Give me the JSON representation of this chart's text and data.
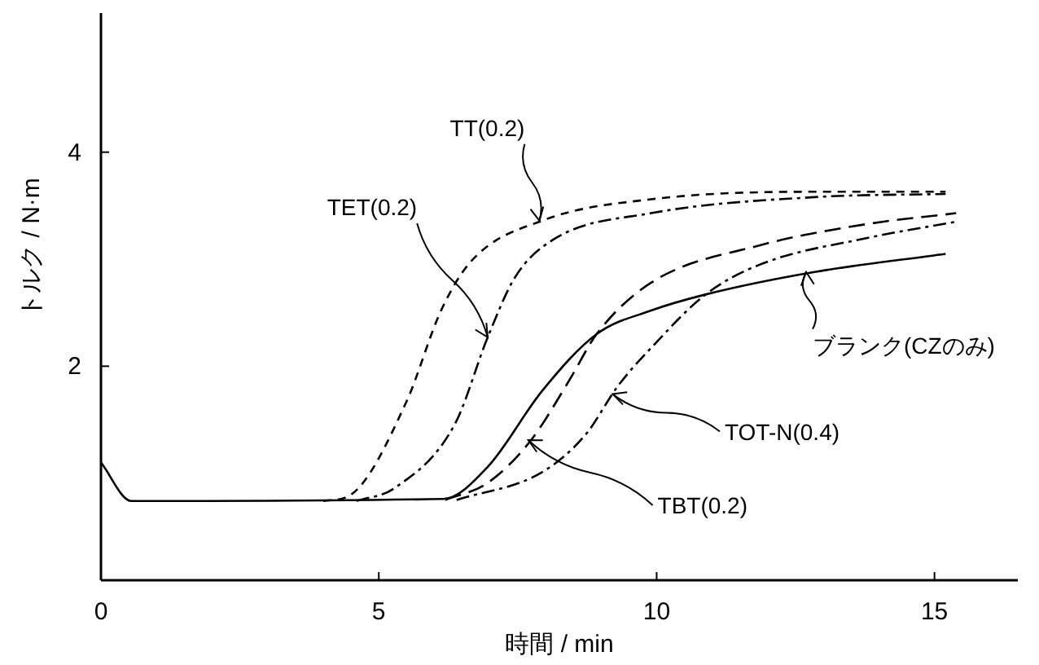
{
  "chart_data": {
    "type": "line",
    "xlabel": "時間 / min",
    "ylabel": "トルク / N·m",
    "xlim": [
      0,
      16.5
    ],
    "ylim": [
      0,
      5.3
    ],
    "xticks": [
      0,
      5,
      10,
      15
    ],
    "yticks": [
      2,
      4
    ],
    "grid": false,
    "marker": "none",
    "series": [
      {
        "color": "#000000",
        "line_style": "dashed",
        "x": [
          4.0,
          4.5,
          5.49,
          6.12,
          6.66,
          7.94,
          9.9,
          12.84,
          15.2
        ],
        "values": [
          0.74,
          0.8,
          1.66,
          2.52,
          2.98,
          3.36,
          3.56,
          3.63,
          3.63
        ]
      },
      {
        "color": "#000000",
        "line_style": "dashdot",
        "x": [
          4.6,
          5.28,
          6.37,
          6.96,
          7.45,
          8.13,
          9.9,
          12.84,
          15.2
        ],
        "values": [
          0.74,
          0.86,
          1.46,
          2.27,
          2.83,
          3.18,
          3.43,
          3.58,
          3.61
        ]
      },
      {
        "color": "#000000",
        "line_style": "solid",
        "x": [
          0,
          0.55,
          6.16,
          6.96,
          7.94,
          8.92,
          9.9,
          10.88,
          12.84,
          15.2
        ],
        "values": [
          1.1,
          0.74,
          0.76,
          1.06,
          1.77,
          2.3,
          2.52,
          2.67,
          2.88,
          3.05
        ]
      },
      {
        "color": "#000000",
        "line_style": "longdash",
        "x": [
          6.2,
          6.96,
          7.74,
          8.43,
          8.92,
          9.9,
          11.86,
          13.81,
          15.39
        ],
        "values": [
          0.75,
          0.91,
          1.31,
          1.87,
          2.3,
          2.78,
          3.13,
          3.33,
          3.43
        ]
      },
      {
        "color": "#000000",
        "line_style": "dashdot",
        "x": [
          6.4,
          7.94,
          8.72,
          9.31,
          9.9,
          10.88,
          11.86,
          13.81,
          15.39
        ],
        "values": [
          0.75,
          1.01,
          1.36,
          1.82,
          2.17,
          2.67,
          2.95,
          3.2,
          3.35
        ]
      }
    ],
    "annotations": [
      {
        "text": "TT(0.2)",
        "x": 7.89,
        "y": 3.36
      },
      {
        "text": "TET(0.2)",
        "x": 6.96,
        "y": 2.27
      },
      {
        "text": "ブランク(CZのみ)",
        "x": 12.69,
        "y": 2.88
      },
      {
        "text": "TOT-N(0.4)",
        "x": 9.21,
        "y": 1.74
      },
      {
        "text": "TBT(0.2)",
        "x": 7.69,
        "y": 1.31
      }
    ]
  }
}
